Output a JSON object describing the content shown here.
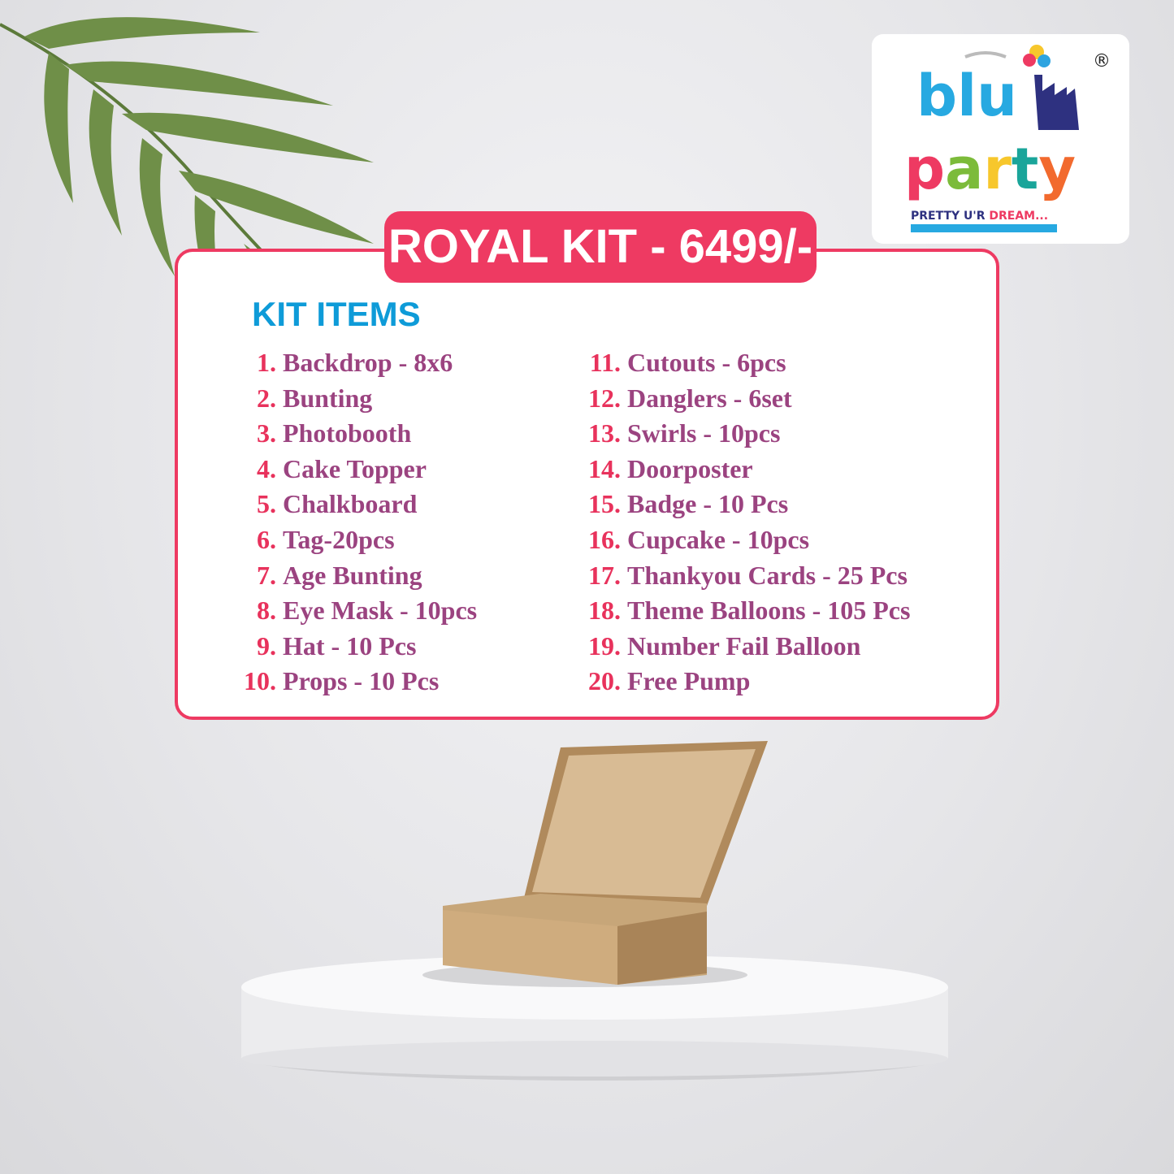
{
  "title": "ROYAL KIT - 6499/-",
  "heading": "KIT ITEMS",
  "items_left": [
    {
      "n": "1.",
      "t": "Backdrop - 8x6"
    },
    {
      "n": "2.",
      "t": "Bunting"
    },
    {
      "n": "3.",
      "t": "Photobooth"
    },
    {
      "n": "4.",
      "t": "Cake Topper"
    },
    {
      "n": "5.",
      "t": "Chalkboard"
    },
    {
      "n": "6.",
      "t": "Tag-20pcs"
    },
    {
      "n": "7.",
      "t": "Age Bunting"
    },
    {
      "n": "8.",
      "t": "Eye Mask - 10pcs"
    },
    {
      "n": "9.",
      "t": "Hat - 10 Pcs"
    },
    {
      "n": "10.",
      "t": "Props - 10 Pcs"
    }
  ],
  "items_right": [
    {
      "n": "11.",
      "t": "Cutouts - 6pcs"
    },
    {
      "n": "12.",
      "t": "Danglers - 6set"
    },
    {
      "n": "13.",
      "t": "Swirls - 10pcs"
    },
    {
      "n": "14.",
      "t": "Doorposter"
    },
    {
      "n": "15.",
      "t": "Badge - 10 Pcs"
    },
    {
      "n": "16.",
      "t": "Cupcake - 10pcs"
    },
    {
      "n": "17.",
      "t": "Thankyou Cards - 25 Pcs"
    },
    {
      "n": "18.",
      "t": "Theme Balloons - 105 Pcs"
    },
    {
      "n": "19.",
      "t": "Number Fail Balloon"
    },
    {
      "n": "20.",
      "t": "Free Pump"
    }
  ],
  "logo": {
    "brand": "blu party",
    "tagline": "PRETTY U'R DREAM...",
    "registered": "®"
  },
  "colors": {
    "frame": "#ee3a62",
    "number": "#e8325c",
    "item_text": "#9b4380",
    "heading": "#0e9bd8"
  }
}
